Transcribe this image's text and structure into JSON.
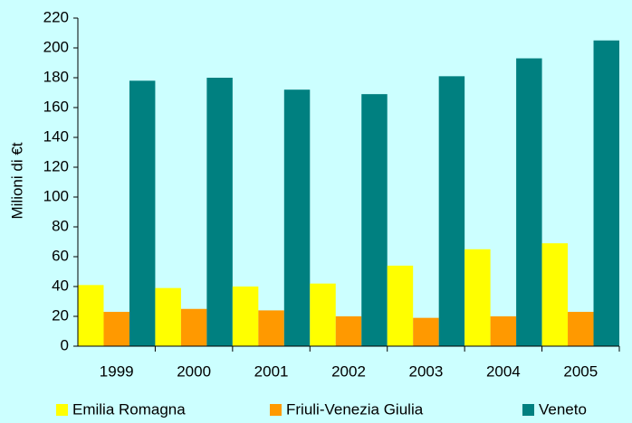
{
  "chart_data": {
    "type": "bar",
    "y_axis_label": "Milioni di €t",
    "categories": [
      "1999",
      "2000",
      "2001",
      "2002",
      "2003",
      "2004",
      "2005"
    ],
    "series": [
      {
        "name": "Emilia Romagna",
        "color": "#ffff00",
        "values": [
          41,
          39,
          40,
          42,
          54,
          65,
          69
        ]
      },
      {
        "name": "Friuli-Venezia Giulia",
        "color": "#ff9900",
        "values": [
          23,
          25,
          24,
          20,
          19,
          20,
          23
        ]
      },
      {
        "name": "Veneto",
        "color": "#008080",
        "values": [
          178,
          180,
          172,
          169,
          181,
          193,
          205
        ]
      }
    ],
    "ylim": [
      0,
      220
    ],
    "yticks": [
      0,
      20,
      40,
      60,
      80,
      100,
      120,
      140,
      160,
      180,
      200,
      220
    ],
    "grid": false,
    "legend": "bottom"
  }
}
